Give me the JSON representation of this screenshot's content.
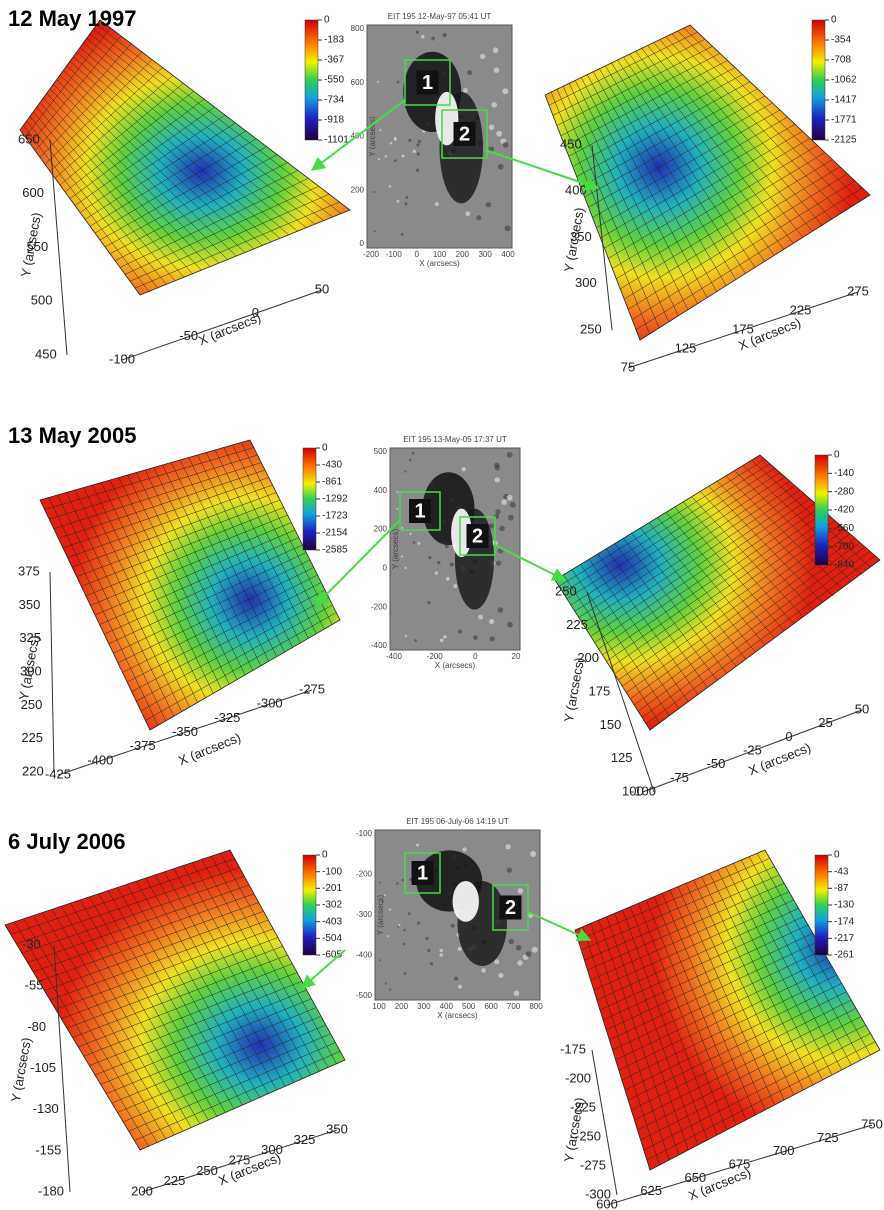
{
  "panels": [
    {
      "title": "12 May 1997",
      "left": {
        "colorbar": [
          0,
          -183,
          -367,
          -550,
          -734,
          -918,
          -1101
        ],
        "yticks": [
          650,
          600,
          550,
          500,
          450
        ],
        "xticks": [
          -100,
          -50,
          0,
          50
        ],
        "ylabel": "Y (arcsecs)",
        "xlabel": "X (arcsecs)"
      },
      "center": {
        "title": "EIT 195 12-May-97 05:41 UT",
        "yticks": [
          800,
          600,
          400,
          200,
          0
        ],
        "xticks": [
          -200,
          -100,
          0,
          100,
          200,
          300,
          400
        ],
        "ylabel": "Y (arcsecs)",
        "xlabel": "X (arcsecs)",
        "boxes": [
          "1",
          "2"
        ]
      },
      "right": {
        "colorbar": [
          0,
          -354,
          -708,
          -1062,
          -1417,
          -1771,
          -2125
        ],
        "yticks": [
          450,
          400,
          350,
          300,
          250
        ],
        "xticks": [
          75,
          125,
          175,
          225,
          275
        ],
        "ylabel": "Y (arcsecs)",
        "xlabel": "X (arcsecs)"
      }
    },
    {
      "title": "13 May 2005",
      "left": {
        "colorbar": [
          0,
          -430,
          -861,
          -1292,
          -1723,
          -2154,
          -2585
        ],
        "yticks": [
          375,
          350,
          325,
          300,
          250,
          225,
          220
        ],
        "xticks": [
          -425,
          -400,
          -375,
          -350,
          -325,
          -300,
          -275
        ],
        "ylabel": "Y (arcsecs)",
        "xlabel": "X (arcsecs)"
      },
      "center": {
        "title": "EIT 195 13-May-05 17:37 UT",
        "yticks": [
          500,
          400,
          200,
          0,
          -200,
          -400
        ],
        "xticks": [
          -400,
          -200,
          0,
          20
        ],
        "ylabel": "Y (arcsecs)",
        "xlabel": "X (arcsecs)",
        "boxes": [
          "1",
          "2"
        ]
      },
      "right": {
        "colorbar": [
          0,
          -140,
          -280,
          -420,
          -560,
          -700,
          -840
        ],
        "yticks": [
          250,
          225,
          200,
          175,
          150,
          125,
          100
        ],
        "xticks": [
          -100,
          -75,
          -50,
          -25,
          0,
          25,
          50
        ],
        "ylabel": "Y (arcsecs)",
        "xlabel": "X (arcsecs)"
      }
    },
    {
      "title": "6 July 2006",
      "left": {
        "colorbar": [
          0,
          -100,
          -201,
          -302,
          -403,
          -504,
          -605
        ],
        "yticks": [
          -30,
          -55,
          -80,
          -105,
          -130,
          -155,
          -180
        ],
        "xticks": [
          200,
          225,
          250,
          275,
          300,
          325,
          350
        ],
        "ylabel": "Y (arcsecs)",
        "xlabel": "X (arcsecs)"
      },
      "center": {
        "title": "EIT 195 06-July-06 14:19 UT",
        "yticks": [
          -100,
          -200,
          -300,
          -400,
          -500
        ],
        "xticks": [
          100,
          200,
          300,
          400,
          500,
          600,
          700,
          800
        ],
        "ylabel": "Y (arcsecs)",
        "xlabel": "X (arcsecs)",
        "boxes": [
          "1",
          "2"
        ]
      },
      "right": {
        "colorbar": [
          0,
          -43,
          -87,
          -130,
          -174,
          -217,
          -261
        ],
        "yticks": [
          -175,
          -200,
          -225,
          -250,
          -275,
          -300
        ],
        "xticks": [
          600,
          625,
          650,
          675,
          700,
          725,
          750
        ],
        "ylabel": "Y (arcsecs)",
        "xlabel": "X (arcsecs)"
      }
    }
  ]
}
